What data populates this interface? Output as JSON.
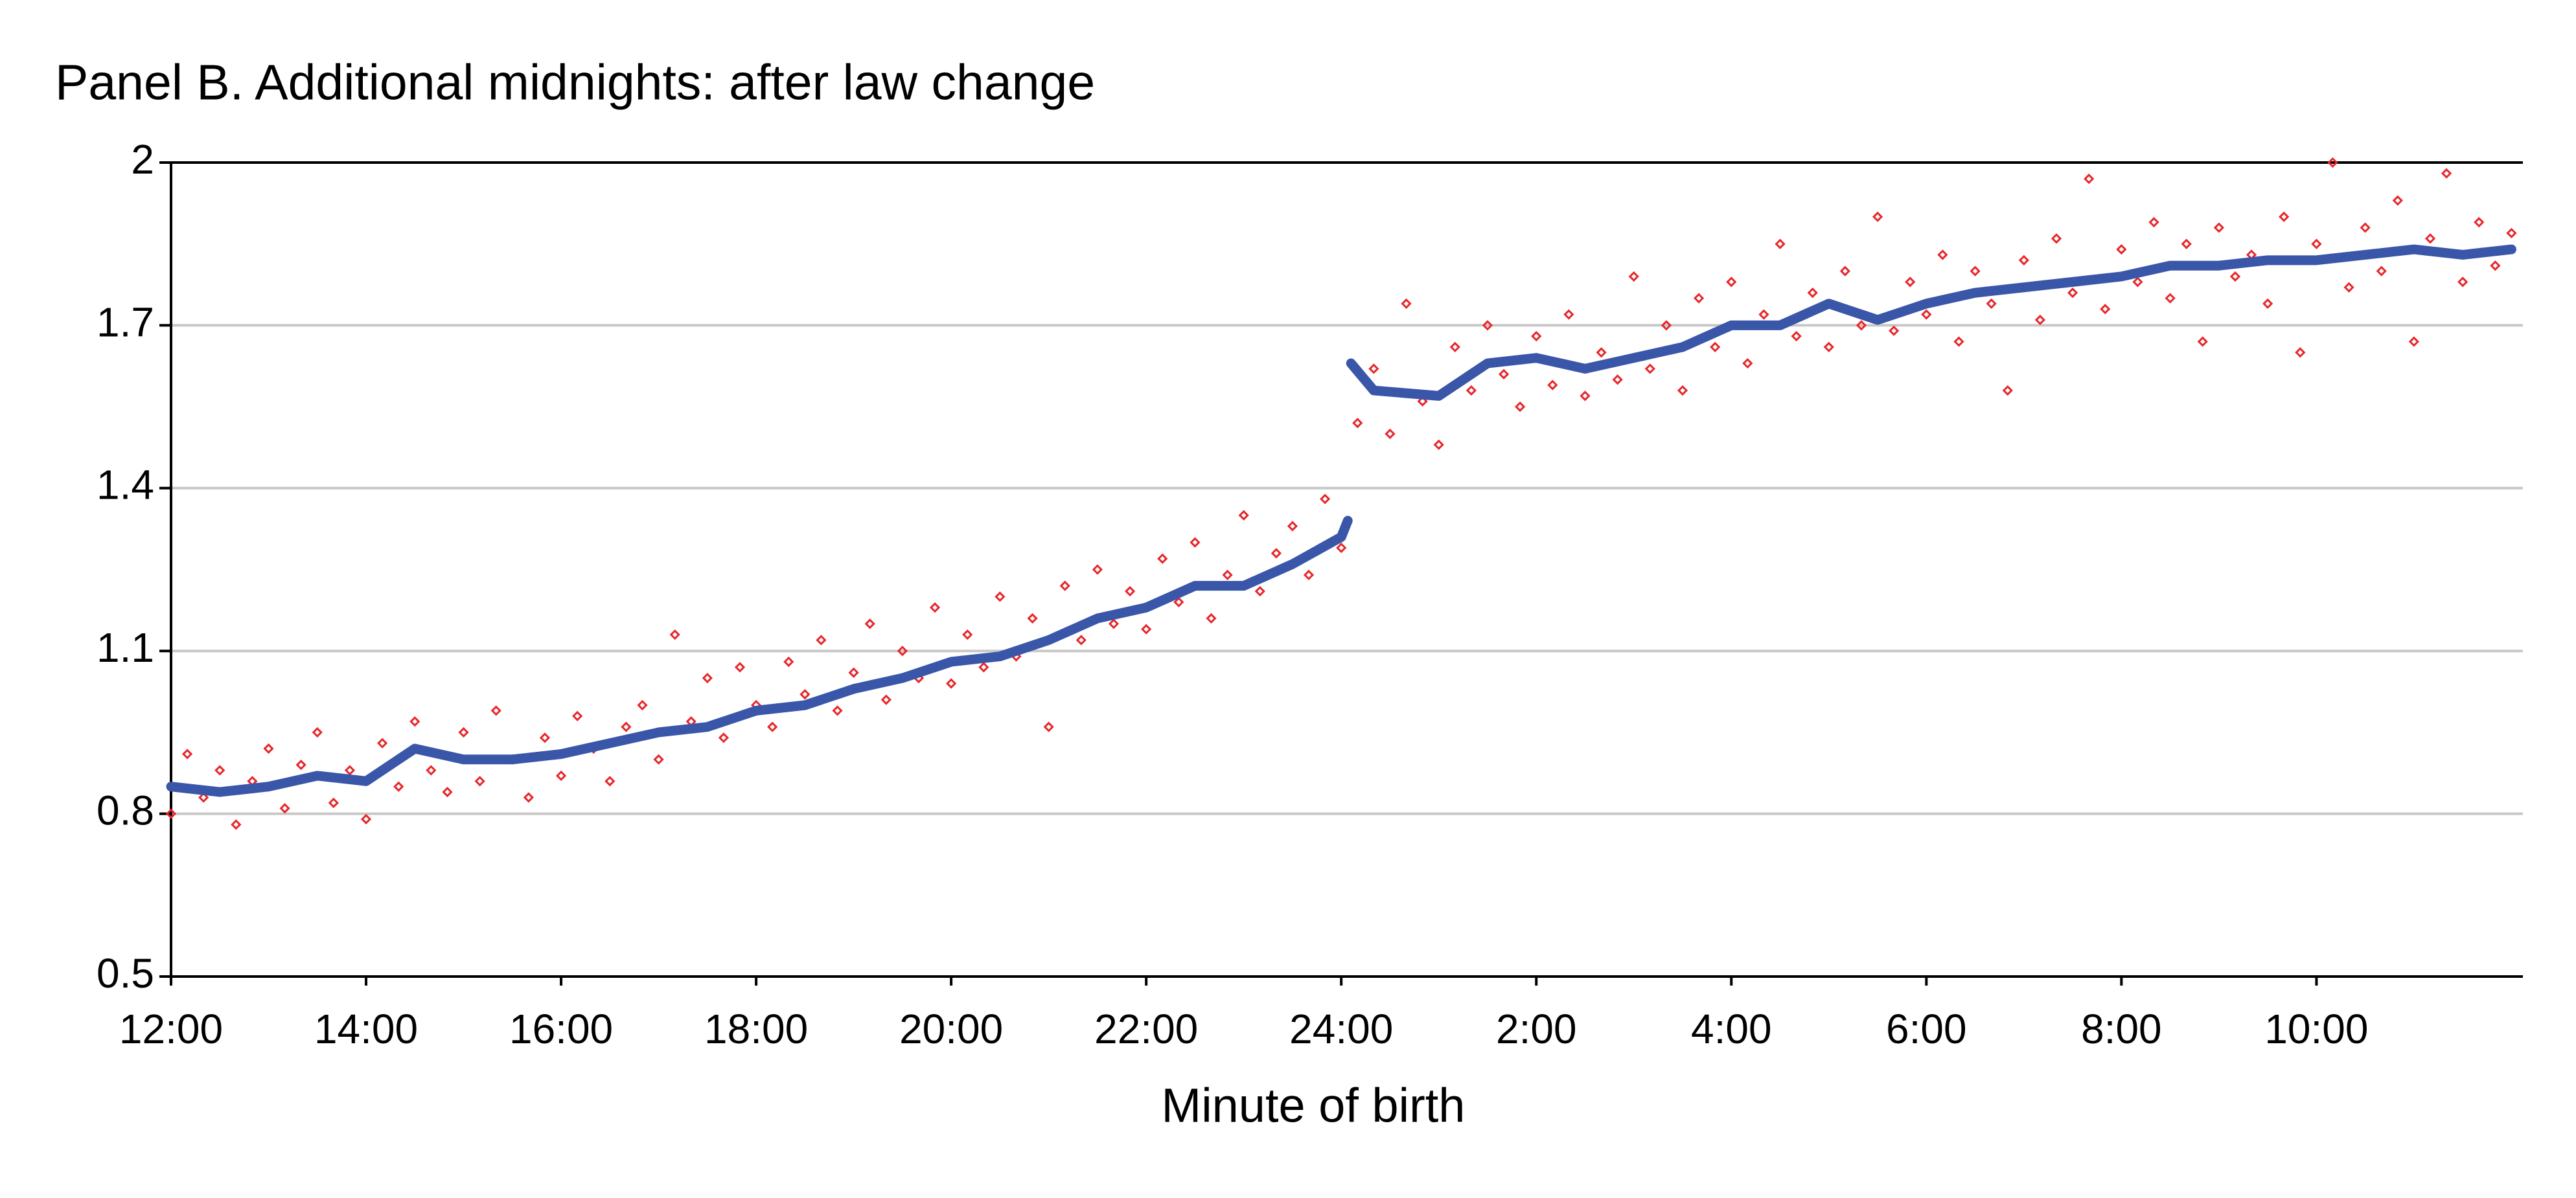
{
  "chart_data": {
    "type": "scatter",
    "title": "Panel B. Additional midnights: after law change",
    "x_label": "Minute of birth",
    "xlim": [
      0,
      1447
    ],
    "xticks": [
      {
        "value": 0,
        "label": "12:00"
      },
      {
        "value": 120,
        "label": "14:00"
      },
      {
        "value": 240,
        "label": "16:00"
      },
      {
        "value": 360,
        "label": "18:00"
      },
      {
        "value": 480,
        "label": "20:00"
      },
      {
        "value": 600,
        "label": "22:00"
      },
      {
        "value": 720,
        "label": "24:00"
      },
      {
        "value": 840,
        "label": "2:00"
      },
      {
        "value": 960,
        "label": "4:00"
      },
      {
        "value": 1080,
        "label": "6:00"
      },
      {
        "value": 1200,
        "label": "8:00"
      },
      {
        "value": 1320,
        "label": "10:00"
      }
    ],
    "ylim": [
      0.5,
      2
    ],
    "yticks": [
      0.5,
      0.8,
      1.1,
      1.4,
      1.7,
      2
    ],
    "grid": true,
    "series": [
      {
        "type": "scatter",
        "color": "#e8262a",
        "x": [
          0,
          10,
          20,
          30,
          40,
          50,
          60,
          70,
          80,
          90,
          100,
          110,
          120,
          130,
          140,
          150,
          160,
          170,
          180,
          190,
          200,
          210,
          220,
          230,
          240,
          250,
          260,
          270,
          280,
          290,
          300,
          310,
          320,
          330,
          340,
          350,
          360,
          370,
          380,
          390,
          400,
          410,
          420,
          430,
          440,
          450,
          460,
          470,
          480,
          490,
          500,
          510,
          520,
          530,
          540,
          550,
          560,
          570,
          580,
          590,
          600,
          610,
          620,
          630,
          640,
          650,
          660,
          670,
          680,
          690,
          700,
          710,
          720,
          730,
          740,
          750,
          760,
          770,
          780,
          790,
          800,
          810,
          820,
          830,
          840,
          850,
          860,
          870,
          880,
          890,
          900,
          910,
          920,
          930,
          940,
          950,
          960,
          970,
          980,
          990,
          1000,
          1010,
          1020,
          1030,
          1040,
          1050,
          1060,
          1070,
          1080,
          1090,
          1100,
          1110,
          1120,
          1130,
          1140,
          1150,
          1160,
          1170,
          1180,
          1190,
          1200,
          1210,
          1220,
          1230,
          1240,
          1250,
          1260,
          1270,
          1280,
          1290,
          1300,
          1310,
          1320,
          1330,
          1340,
          1350,
          1360,
          1370,
          1380,
          1390,
          1400,
          1410,
          1420,
          1430,
          1440
        ],
        "values": [
          0.8,
          0.91,
          0.83,
          0.88,
          0.78,
          0.86,
          0.92,
          0.81,
          0.89,
          0.95,
          0.82,
          0.88,
          0.79,
          0.93,
          0.85,
          0.97,
          0.88,
          0.84,
          0.95,
          0.86,
          0.99,
          0.9,
          0.83,
          0.94,
          0.87,
          0.98,
          0.92,
          0.86,
          0.96,
          1.0,
          0.9,
          1.13,
          0.97,
          1.05,
          0.94,
          1.07,
          1.0,
          0.96,
          1.08,
          1.02,
          1.12,
          0.99,
          1.06,
          1.15,
          1.01,
          1.1,
          1.05,
          1.18,
          1.04,
          1.13,
          1.07,
          1.2,
          1.09,
          1.16,
          0.96,
          1.22,
          1.12,
          1.25,
          1.15,
          1.21,
          1.14,
          1.27,
          1.19,
          1.3,
          1.16,
          1.24,
          1.35,
          1.21,
          1.28,
          1.33,
          1.24,
          1.38,
          1.29,
          1.52,
          1.62,
          1.5,
          1.74,
          1.56,
          1.48,
          1.66,
          1.58,
          1.7,
          1.61,
          1.55,
          1.68,
          1.59,
          1.72,
          1.57,
          1.65,
          1.6,
          1.79,
          1.62,
          1.7,
          1.58,
          1.75,
          1.66,
          1.78,
          1.63,
          1.72,
          1.85,
          1.68,
          1.76,
          1.66,
          1.8,
          1.7,
          1.9,
          1.69,
          1.78,
          1.72,
          1.83,
          1.67,
          1.8,
          1.74,
          1.58,
          1.82,
          1.71,
          1.86,
          1.76,
          1.97,
          1.73,
          1.84,
          1.78,
          1.89,
          1.75,
          1.85,
          1.67,
          1.88,
          1.79,
          1.83,
          1.74,
          1.9,
          1.65,
          1.85,
          2.0,
          1.77,
          1.88,
          1.8,
          1.93,
          1.67,
          1.86,
          1.98,
          1.78,
          1.89,
          1.81,
          1.87
        ]
      },
      {
        "type": "line",
        "color": "#3a56a8",
        "x": [
          0,
          30,
          60,
          90,
          120,
          150,
          180,
          210,
          240,
          270,
          300,
          330,
          360,
          390,
          420,
          450,
          480,
          510,
          540,
          570,
          600,
          630,
          660,
          690,
          720,
          724,
          725,
          726,
          740,
          780,
          810,
          840,
          870,
          900,
          930,
          960,
          990,
          1020,
          1050,
          1080,
          1110,
          1140,
          1170,
          1200,
          1230,
          1260,
          1290,
          1320,
          1350,
          1380,
          1410,
          1440
        ],
        "values": [
          0.85,
          0.84,
          0.85,
          0.87,
          0.86,
          0.92,
          0.9,
          0.9,
          0.91,
          0.93,
          0.95,
          0.96,
          0.99,
          1.0,
          1.03,
          1.05,
          1.08,
          1.09,
          1.12,
          1.16,
          1.18,
          1.22,
          1.22,
          1.26,
          1.31,
          1.34,
          null,
          1.63,
          1.58,
          1.57,
          1.63,
          1.64,
          1.62,
          1.64,
          1.66,
          1.7,
          1.7,
          1.74,
          1.71,
          1.74,
          1.76,
          1.77,
          1.78,
          1.79,
          1.81,
          1.81,
          1.82,
          1.82,
          1.83,
          1.84,
          1.83,
          1.84
        ]
      }
    ]
  }
}
